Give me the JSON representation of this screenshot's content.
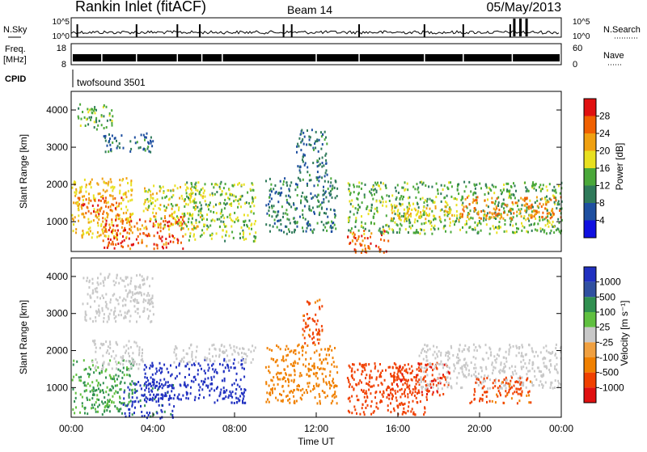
{
  "header": {
    "station": "Rankin Inlet (fitACF)",
    "beam": "Beam 14",
    "date": "05/May/2013"
  },
  "noise_panel": {
    "left_label": "N.Sky",
    "right_label": "N.Search",
    "left_ticks": [
      "10^5",
      "10^0"
    ],
    "right_ticks": [
      "10^5",
      "10^0"
    ]
  },
  "freq_panel": {
    "left_label_1": "Freq.",
    "left_label_2": "[MHz]",
    "right_label": "Nave",
    "left_ticks": [
      "18",
      "8"
    ],
    "right_ticks": [
      "60",
      "0"
    ]
  },
  "cpid": {
    "label": "CPID",
    "value": "twofsound 3501"
  },
  "x_axis": {
    "label": "Time UT",
    "ticks": [
      "00:00",
      "04:00",
      "08:00",
      "12:00",
      "16:00",
      "20:00",
      "00:00"
    ]
  },
  "colors": {
    "power": [
      "#1010e0",
      "#1e4fa0",
      "#2f7a5a",
      "#4aa83a",
      "#e8e020",
      "#f0a010",
      "#f06000",
      "#e01010"
    ],
    "velocity": [
      "#e01010",
      "#f04000",
      "#f08000",
      "#f0a040",
      "#c8c8c8",
      "#60c040",
      "#309050",
      "#3050a0",
      "#2030c0"
    ]
  },
  "chart_data": [
    {
      "type": "heatmap",
      "name": "Power",
      "ylabel": "Slant Range [km]",
      "yticks": [
        "1000",
        "2000",
        "3000",
        "4000"
      ],
      "ylim": [
        200,
        4500
      ],
      "xlim_hours": [
        0,
        24
      ],
      "colorbar_label": "Power [dB]",
      "colorbar_ticks": [
        "4",
        "8",
        "12",
        "16",
        "20",
        "24",
        "28"
      ],
      "colorbar_range": [
        0,
        32
      ],
      "regions": [
        {
          "t0": 0.0,
          "t1": 3.0,
          "r0": 600,
          "r1": 2200,
          "value": 20
        },
        {
          "t0": 0.3,
          "t1": 2.5,
          "r0": 1200,
          "r1": 1700,
          "value": 26
        },
        {
          "t0": 1.5,
          "t1": 5.5,
          "r0": 300,
          "r1": 1200,
          "value": 27
        },
        {
          "t0": 3.5,
          "t1": 6.5,
          "r0": 800,
          "r1": 2000,
          "value": 18
        },
        {
          "t0": 5.5,
          "t1": 9.0,
          "r0": 500,
          "r1": 2100,
          "value": 15
        },
        {
          "t0": 0.3,
          "t1": 2.0,
          "r0": 3500,
          "r1": 4200,
          "value": 14
        },
        {
          "t0": 1.5,
          "t1": 4.0,
          "r0": 2900,
          "r1": 3400,
          "value": 9
        },
        {
          "t0": 9.5,
          "t1": 13.0,
          "r0": 700,
          "r1": 2200,
          "value": 10
        },
        {
          "t0": 11.0,
          "t1": 12.5,
          "r0": 2200,
          "r1": 3500,
          "value": 9
        },
        {
          "t0": 13.5,
          "t1": 15.5,
          "r0": 200,
          "r1": 800,
          "value": 26
        },
        {
          "t0": 13.5,
          "t1": 24.0,
          "r0": 700,
          "r1": 2100,
          "value": 14
        },
        {
          "t0": 19.0,
          "t1": 24.0,
          "r0": 1100,
          "r1": 1700,
          "value": 24
        },
        {
          "t0": 15.5,
          "t1": 19.0,
          "r0": 1000,
          "r1": 1500,
          "value": 20
        }
      ]
    },
    {
      "type": "heatmap",
      "name": "Velocity",
      "ylabel": "Slant Range [km]",
      "yticks": [
        "1000",
        "2000",
        "3000",
        "4000"
      ],
      "ylim": [
        200,
        4500
      ],
      "xlim_hours": [
        0,
        24
      ],
      "colorbar_label": "Velocity [m s⁻¹]",
      "colorbar_ticks": [
        "1000",
        "500",
        "100",
        "25",
        "-25",
        "-100",
        "-500",
        "-1000"
      ],
      "regions": [
        {
          "t0": 0.0,
          "t1": 3.0,
          "r0": 300,
          "r1": 1800,
          "value": 100
        },
        {
          "t0": 1.0,
          "t1": 3.5,
          "r0": 1500,
          "r1": 2300,
          "value": 0
        },
        {
          "t0": 2.5,
          "t1": 5.0,
          "r0": 200,
          "r1": 1200,
          "value": 600
        },
        {
          "t0": 3.5,
          "t1": 6.5,
          "r0": 700,
          "r1": 1700,
          "value": 800
        },
        {
          "t0": 6.5,
          "t1": 8.5,
          "r0": 600,
          "r1": 1800,
          "value": 900
        },
        {
          "t0": 5.0,
          "t1": 9.0,
          "r0": 1700,
          "r1": 2200,
          "value": 0
        },
        {
          "t0": 0.5,
          "t1": 4.0,
          "r0": 2800,
          "r1": 4100,
          "value": 0
        },
        {
          "t0": 9.5,
          "t1": 13.0,
          "r0": 600,
          "r1": 2200,
          "value": -60
        },
        {
          "t0": 11.3,
          "t1": 12.3,
          "r0": 2200,
          "r1": 3400,
          "value": -200
        },
        {
          "t0": 13.5,
          "t1": 17.5,
          "r0": 300,
          "r1": 1700,
          "value": -300
        },
        {
          "t0": 15.5,
          "t1": 18.5,
          "r0": 800,
          "r1": 1700,
          "value": -450
        },
        {
          "t0": 17.0,
          "t1": 24.0,
          "r0": 1000,
          "r1": 2200,
          "value": 0
        },
        {
          "t0": 19.5,
          "t1": 22.5,
          "r0": 600,
          "r1": 1300,
          "value": -200
        }
      ]
    }
  ]
}
